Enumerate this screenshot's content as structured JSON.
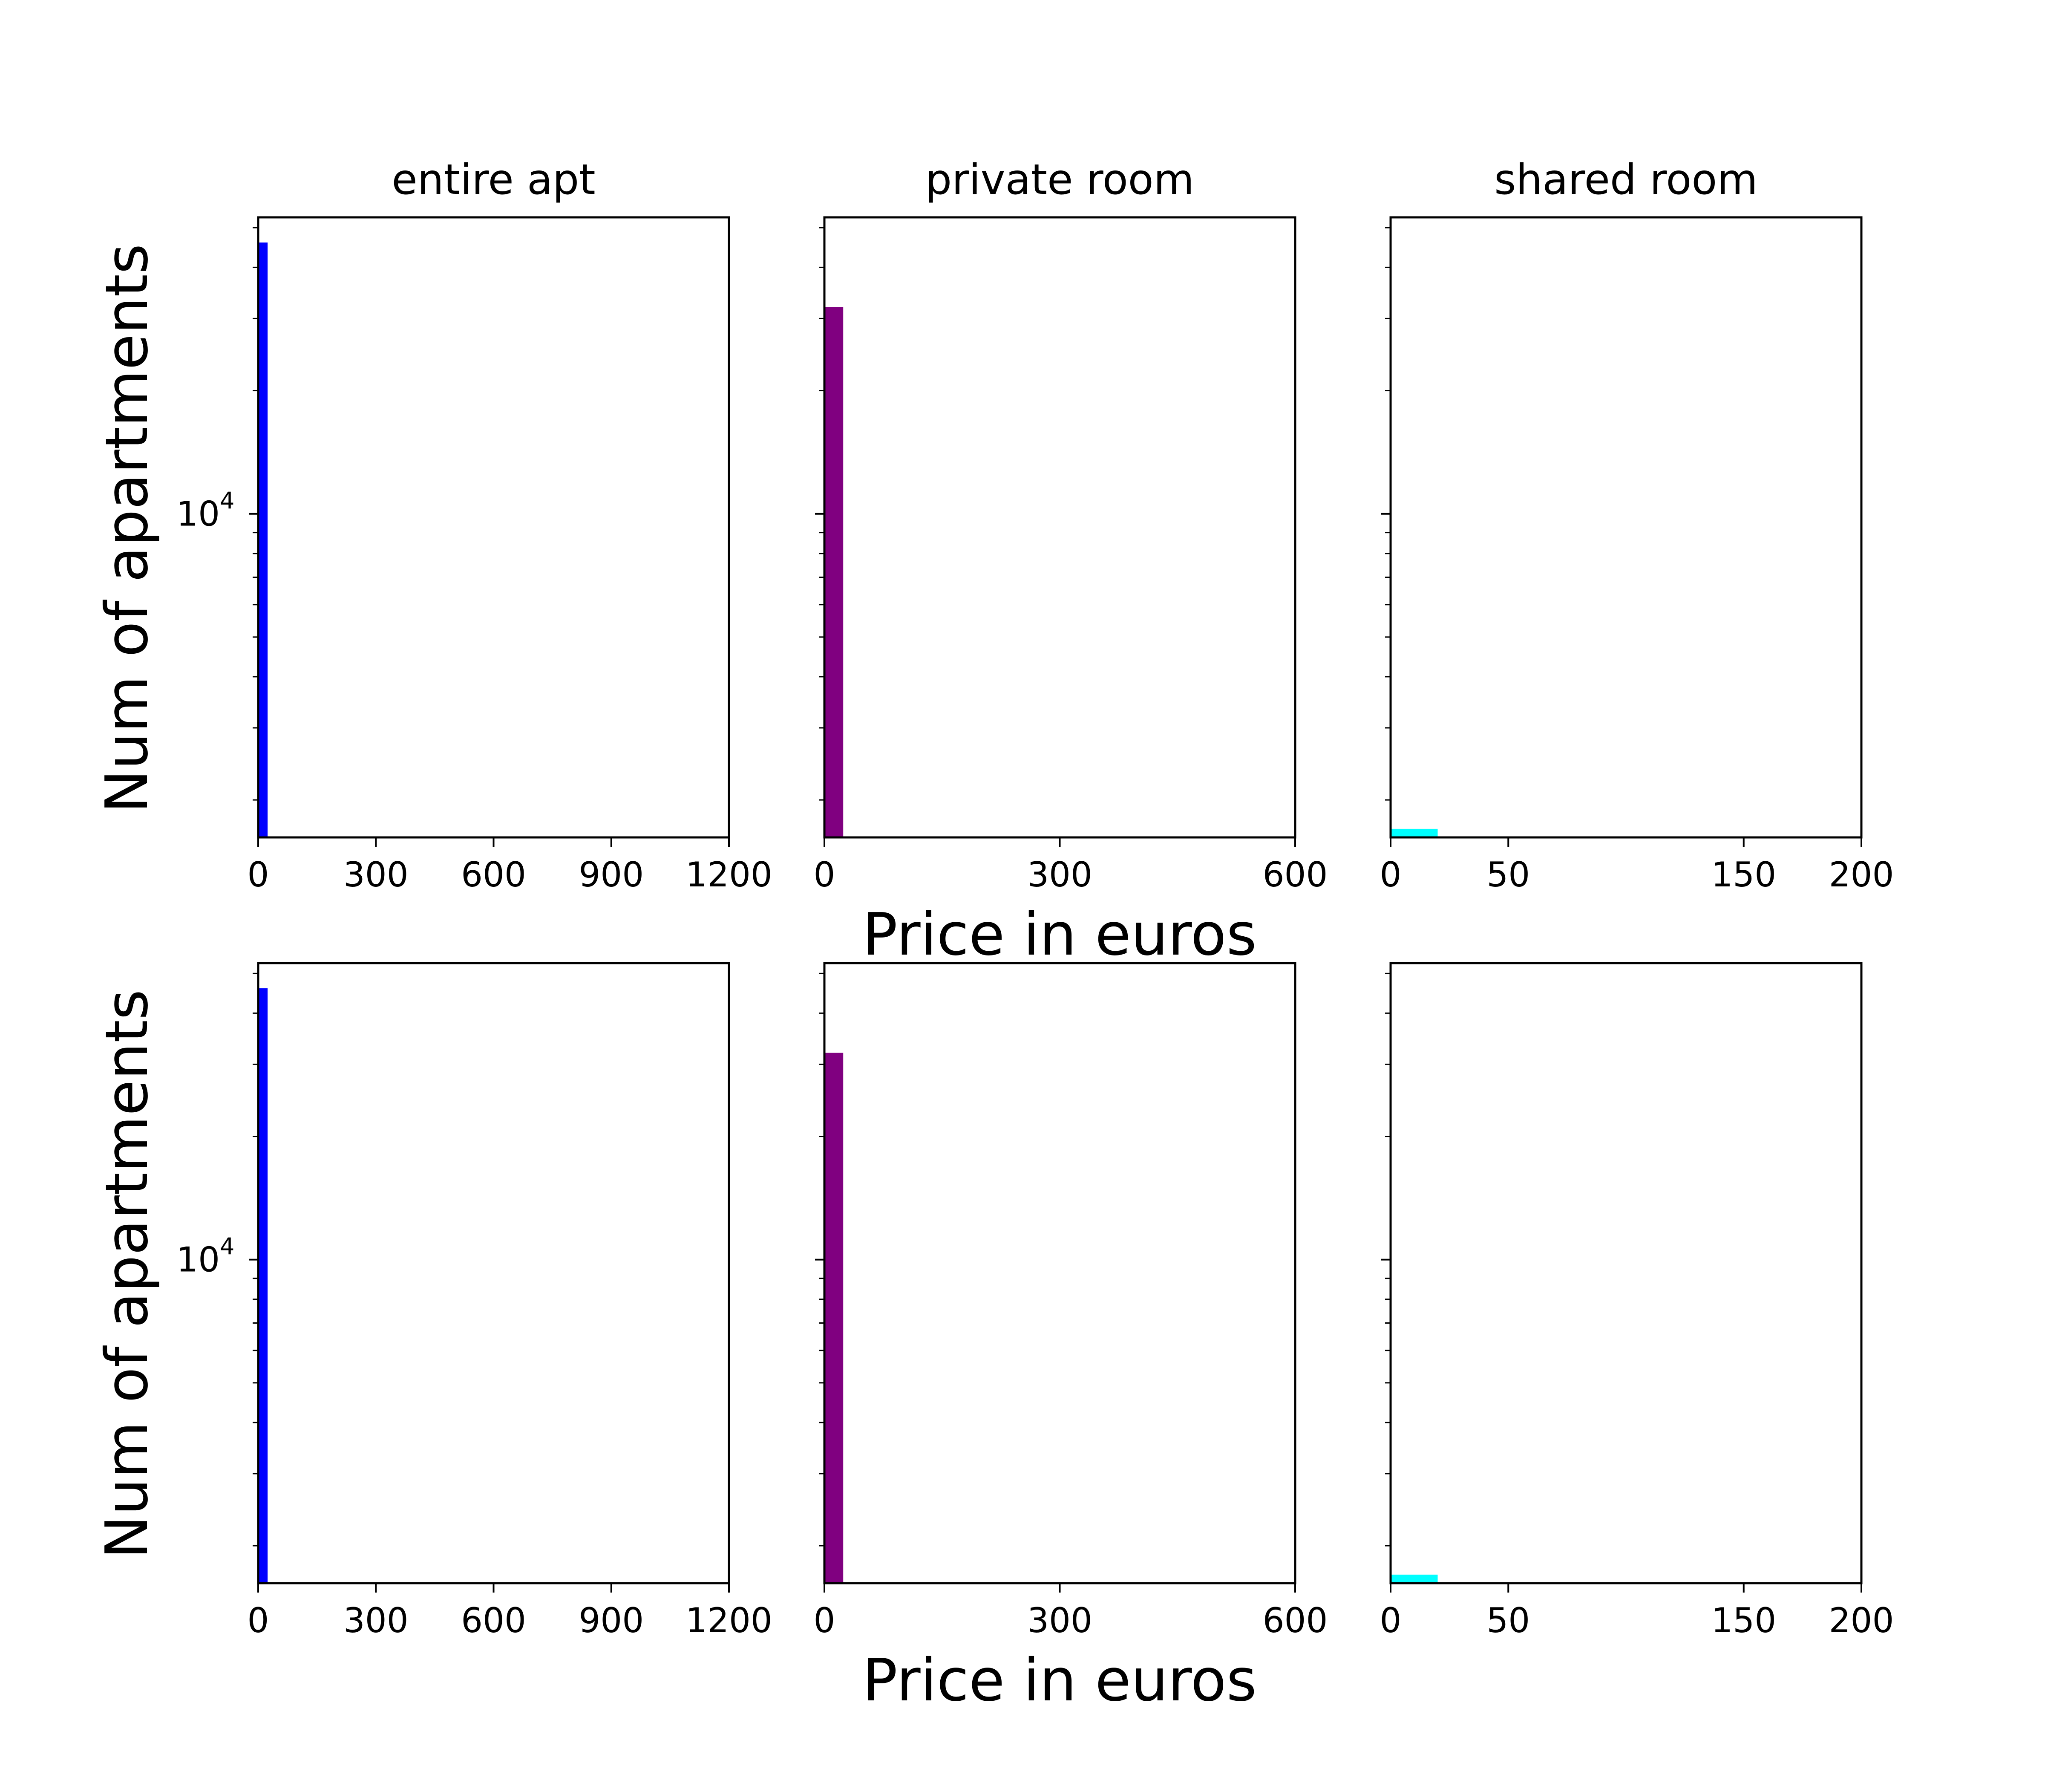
{
  "chart_data": [
    {
      "type": "bar",
      "title": "entire apt",
      "xlabel": "",
      "ylabel": "Num of apartments",
      "yscale": "log",
      "xlim": [
        0,
        1200
      ],
      "xticks": [
        "0",
        "300",
        "600",
        "900",
        "1200"
      ],
      "yticks": [
        "10^4"
      ],
      "color": "#0000ff",
      "bins": [
        {
          "x0": 0,
          "x1": 24,
          "count": 46000
        }
      ]
    },
    {
      "type": "bar",
      "title": "private room",
      "xlabel": "",
      "ylabel": "",
      "yscale": "log",
      "xlim": [
        0,
        600
      ],
      "xticks": [
        "0",
        "300",
        "600"
      ],
      "yticks": [
        "10^4"
      ],
      "color": "#800080",
      "bins": [
        {
          "x0": 0,
          "x1": 24,
          "count": 32000
        }
      ]
    },
    {
      "type": "bar",
      "title": "shared room",
      "xlabel": "",
      "ylabel": "",
      "yscale": "log",
      "xlim": [
        0,
        200
      ],
      "xticks": [
        "0",
        "50",
        "150",
        "200"
      ],
      "yticks": [],
      "color": "#00ffff",
      "bins": [
        {
          "x0": 0,
          "x1": 20,
          "count": 1700
        }
      ]
    },
    {
      "type": "bar",
      "title": "",
      "xlabel": "Price in euros",
      "ylabel": "Num of apartments",
      "yscale": "log",
      "xlim": [
        0,
        1200
      ],
      "xticks": [
        "0",
        "300",
        "600",
        "900",
        "1200"
      ],
      "yticks": [
        "10^4"
      ],
      "color": "#0000ff",
      "bins": [
        {
          "x0": 0,
          "x1": 24,
          "count": 46000
        }
      ]
    },
    {
      "type": "bar",
      "title": "",
      "xlabel": "",
      "ylabel": "",
      "yscale": "log",
      "xlim": [
        0,
        600
      ],
      "xticks": [
        "0",
        "300",
        "600"
      ],
      "yticks": [
        "10^4"
      ],
      "color": "#800080",
      "bins": [
        {
          "x0": 0,
          "x1": 24,
          "count": 32000
        }
      ]
    },
    {
      "type": "bar",
      "title": "",
      "xlabel": "",
      "ylabel": "",
      "yscale": "log",
      "xlim": [
        0,
        200
      ],
      "xticks": [
        "0",
        "50",
        "150",
        "200"
      ],
      "yticks": [],
      "color": "#00ffff",
      "bins": [
        {
          "x0": 0,
          "x1": 20,
          "count": 1700
        }
      ]
    }
  ],
  "figure": {
    "xlabel": "Price in euros",
    "ylabel": "Num of apartments",
    "tick_10_base": "10",
    "tick_10_exp": "4"
  }
}
